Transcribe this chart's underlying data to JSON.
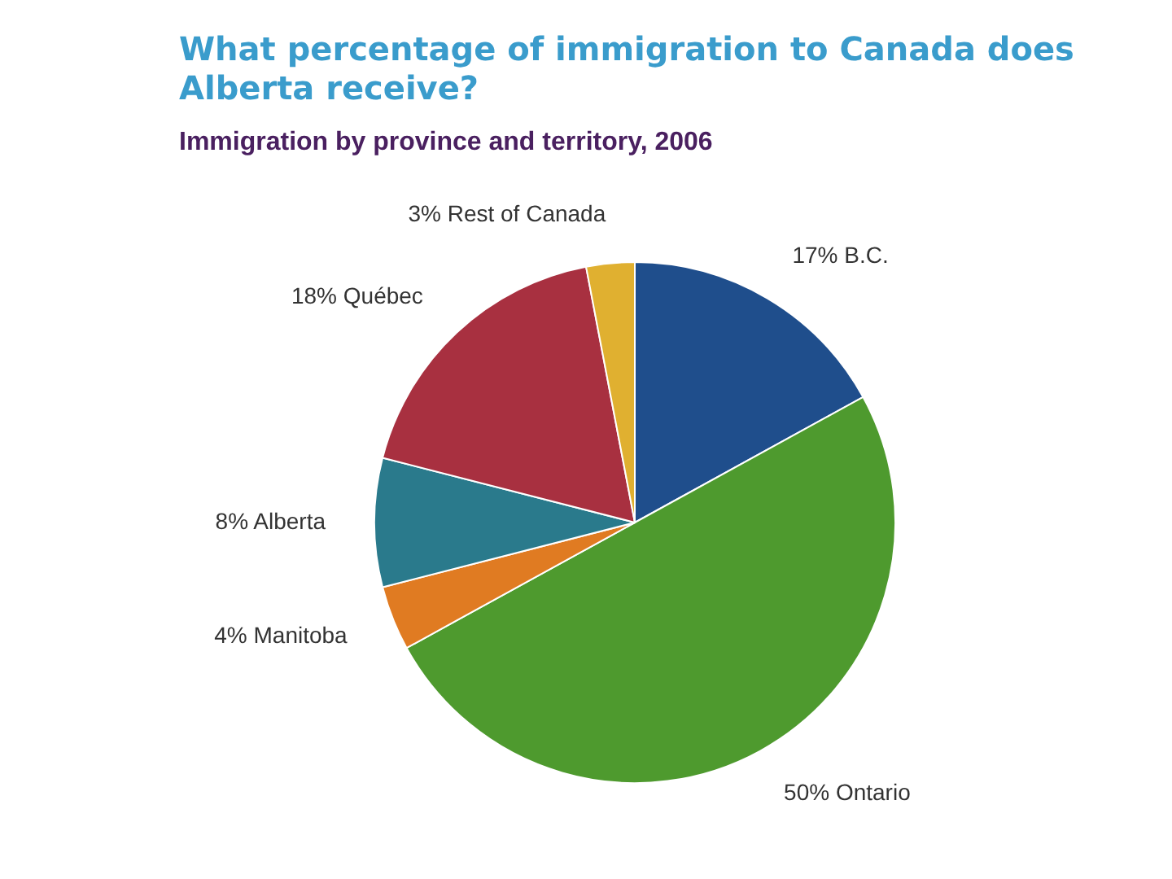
{
  "chart_data": {
    "type": "pie",
    "title": "What percentage of immigration to Canada does Alberta receive?",
    "subtitle": "Immigration by province and territory, 2006",
    "categories": [
      "B.C.",
      "Ontario",
      "Manitoba",
      "Alberta",
      "Québec",
      "Rest of Canada"
    ],
    "values": [
      17,
      50,
      4,
      8,
      18,
      3
    ],
    "value_labels": [
      "17%",
      "50%",
      "4%",
      "8%",
      "18%",
      "3%"
    ],
    "colors": [
      "#1f4e8c",
      "#4e9a2e",
      "#e07b22",
      "#2a7a8c",
      "#a83040",
      "#e0b030"
    ],
    "legend": false
  }
}
